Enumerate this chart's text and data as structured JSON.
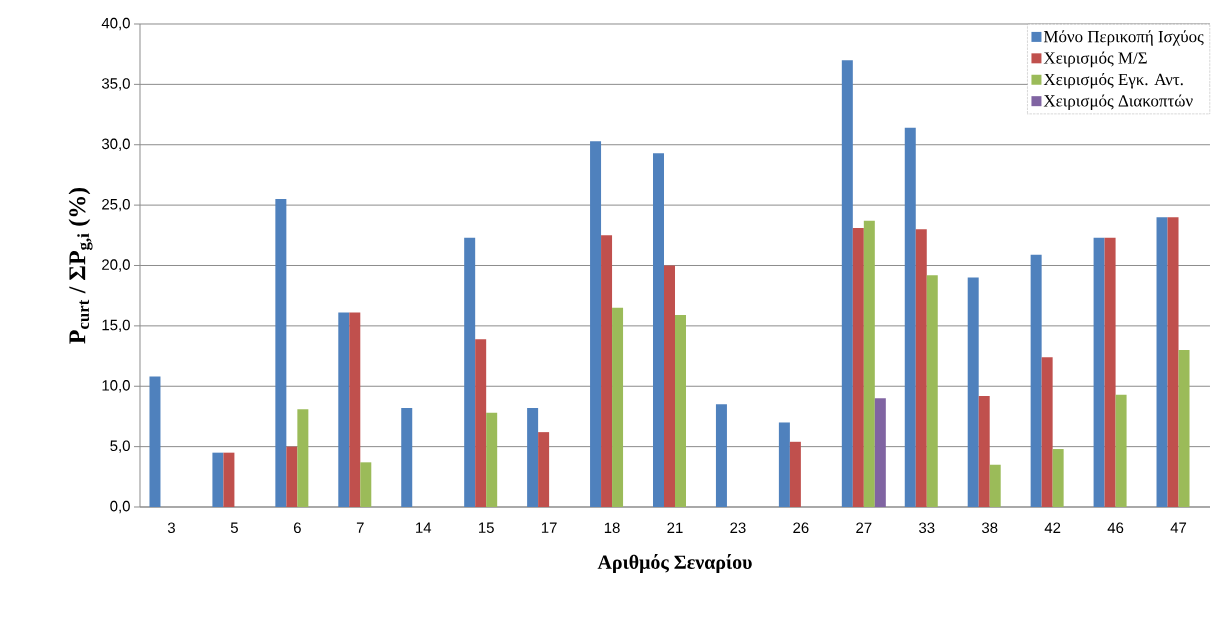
{
  "chart_data": {
    "type": "bar",
    "xlabel": "Αριθμός Σεναρίου",
    "ylabel": "P$_{curt}$ / ΣP$_{g,i}$ (%)",
    "categories": [
      "3",
      "5",
      "6",
      "7",
      "14",
      "15",
      "17",
      "18",
      "21",
      "23",
      "26",
      "27",
      "33",
      "38",
      "42",
      "46",
      "47"
    ],
    "series": [
      {
        "name": "Μόνο Περικοπή Ισχύος",
        "color": "#4f81bd",
        "values": [
          10.8,
          4.5,
          25.5,
          16.1,
          8.2,
          22.3,
          8.2,
          30.3,
          29.3,
          8.5,
          7.0,
          37.0,
          31.4,
          19.0,
          20.9,
          22.3,
          24.0
        ]
      },
      {
        "name": "Χειρισμός Μ/Σ",
        "color": "#c0504d",
        "values": [
          0,
          4.5,
          5.0,
          16.1,
          0,
          13.9,
          6.2,
          22.5,
          20.0,
          0,
          5.4,
          23.1,
          23.0,
          9.2,
          12.4,
          22.3,
          24.0
        ]
      },
      {
        "name": "Χειρισμός Εγκ. Αντ.",
        "color": "#9bbb59",
        "values": [
          0,
          0,
          8.1,
          3.7,
          0,
          7.8,
          0,
          16.5,
          15.9,
          0,
          0,
          23.7,
          19.2,
          3.5,
          4.8,
          9.3,
          13.0
        ]
      },
      {
        "name": "Χειρισμός Διακοπτών",
        "color": "#8064a2",
        "values": [
          0,
          0,
          0,
          0,
          0,
          0,
          0,
          0,
          0,
          0,
          0,
          9.0,
          0,
          0,
          0,
          0,
          0
        ]
      }
    ],
    "ylim": [
      0,
      40
    ],
    "yticks": [
      {
        "value": 0,
        "label": "0,0"
      },
      {
        "value": 5,
        "label": "5,0"
      },
      {
        "value": 10,
        "label": "10,0"
      },
      {
        "value": 15,
        "label": "15,0"
      },
      {
        "value": 20,
        "label": "20,0"
      },
      {
        "value": 25,
        "label": "25,0"
      },
      {
        "value": 30,
        "label": "30,0"
      },
      {
        "value": 35,
        "label": "35,0"
      },
      {
        "value": 40,
        "label": "40,0"
      }
    ],
    "grid": "y",
    "legend": "top right"
  }
}
